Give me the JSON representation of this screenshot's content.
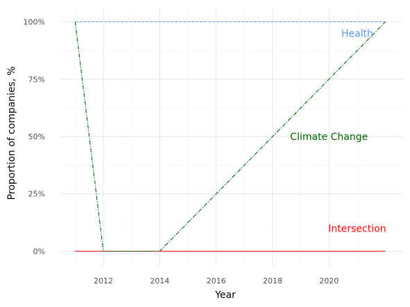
{
  "chart_data": {
    "type": "line",
    "title": "",
    "xlabel": "Year",
    "ylabel": "Proportion of companies, %",
    "xlim": [
      2010.5,
      2022.6
    ],
    "ylim": [
      -6.5,
      106.5
    ],
    "x_ticks": [
      2012,
      2014,
      2016,
      2018,
      2020
    ],
    "y_ticks": [
      0,
      25,
      50,
      75,
      100
    ],
    "y_tick_labels": [
      "0%",
      "25%",
      "50%",
      "75%",
      "100%"
    ],
    "grid": true,
    "legend": "none",
    "series": [
      {
        "name": "Health",
        "color": "#5b9bea",
        "style": "dashed",
        "x": [
          2011,
          2012,
          2013,
          2014,
          2015,
          2016,
          2017,
          2018,
          2019,
          2020,
          2021,
          2022
        ],
        "y": [
          100,
          100,
          100,
          100,
          100,
          100,
          100,
          100,
          100,
          100,
          100,
          100
        ],
        "label_x": 2021,
        "label_y": 95
      },
      {
        "name": "Climate Change",
        "color": "#006400",
        "style": "dashdot",
        "x": [
          2011,
          2012,
          2013,
          2014,
          2015,
          2016,
          2017,
          2018,
          2019,
          2020,
          2021,
          2022
        ],
        "y": [
          100,
          0,
          0,
          0,
          12.5,
          25,
          37.5,
          50,
          62.5,
          75,
          87.5,
          100
        ],
        "label_x": 2020,
        "label_y": 50
      },
      {
        "name": "Intersection",
        "color": "#ff0000",
        "style": "solid",
        "x": [
          2011,
          2012,
          2013,
          2014,
          2015,
          2016,
          2017,
          2018,
          2019,
          2020,
          2021,
          2022
        ],
        "y": [
          0,
          0,
          0,
          0,
          0,
          0,
          0,
          0,
          0,
          0,
          0,
          0
        ],
        "label_x": 2021,
        "label_y": 10
      }
    ]
  }
}
